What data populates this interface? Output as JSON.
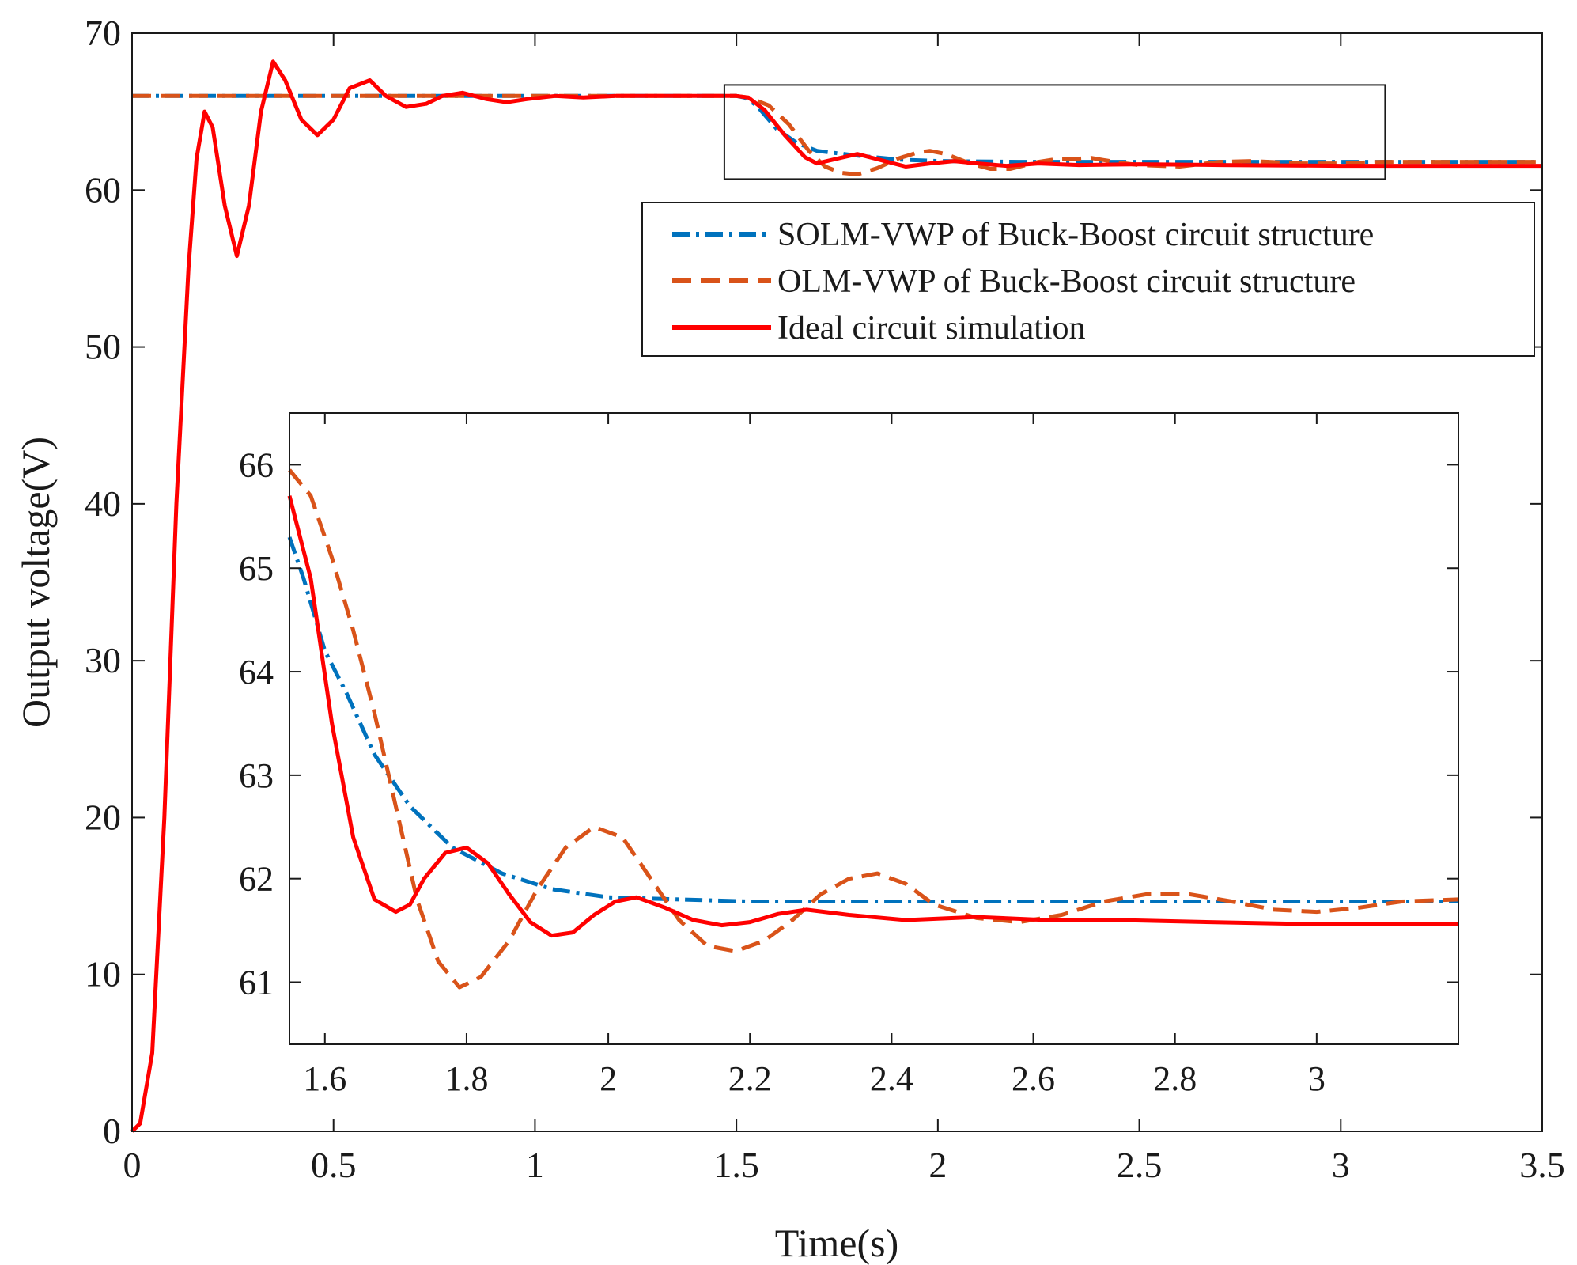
{
  "chart_data": [
    {
      "id": "main",
      "type": "line",
      "xlabel": "Time(s)",
      "ylabel": "Output voltage(V)",
      "xlim": [
        0,
        3.5
      ],
      "ylim": [
        0,
        70
      ],
      "xticks": [
        0,
        0.5,
        1,
        1.5,
        2,
        2.5,
        3,
        3.5
      ],
      "xtick_labels": [
        "0",
        "0.5",
        "1",
        "1.5",
        "2",
        "2.5",
        "3",
        "3.5"
      ],
      "yticks": [
        0,
        10,
        20,
        30,
        40,
        50,
        60,
        70
      ],
      "ytick_labels": [
        "0",
        "10",
        "20",
        "30",
        "40",
        "50",
        "60",
        "70"
      ],
      "grid": false,
      "legend_position": "upper-right",
      "zoom_box": {
        "x": [
          1.47,
          3.11
        ],
        "y": [
          60.7,
          66.7
        ]
      },
      "series": [
        {
          "name": "SOLM-VWP of Buck-Boost circuit structure",
          "color": "#0072BD",
          "style": "dashdot",
          "x": [
            0,
            1.5,
            1.52,
            1.55,
            1.6,
            1.65,
            1.7,
            1.8,
            1.9,
            2.0,
            2.2,
            2.5,
            3.0,
            3.5
          ],
          "y": [
            66,
            66,
            65.9,
            65.4,
            63.9,
            63.0,
            62.5,
            62.2,
            61.95,
            61.85,
            61.8,
            61.8,
            61.8,
            61.8
          ]
        },
        {
          "name": "OLM-VWP of Buck-Boost circuit structure",
          "color": "#D95319",
          "style": "dashed",
          "x": [
            0,
            1.5,
            1.53,
            1.58,
            1.63,
            1.68,
            1.72,
            1.76,
            1.8,
            1.85,
            1.9,
            1.95,
            1.98,
            2.02,
            2.08,
            2.13,
            2.18,
            2.25,
            2.3,
            2.35,
            2.38,
            2.45,
            2.5,
            2.6,
            2.7,
            2.78,
            2.9,
            3.0,
            3.1,
            3.5
          ],
          "y": [
            66,
            66,
            65.9,
            65.4,
            64.2,
            62.5,
            61.5,
            61.1,
            61.0,
            61.4,
            62.0,
            62.4,
            62.5,
            62.3,
            61.7,
            61.35,
            61.35,
            61.8,
            62.0,
            62.0,
            62.05,
            61.75,
            61.6,
            61.5,
            61.8,
            61.85,
            61.7,
            61.7,
            61.8,
            61.8
          ]
        },
        {
          "name": "Ideal circuit simulation",
          "color": "#FF0000",
          "style": "solid",
          "x": [
            0,
            0.02,
            0.05,
            0.08,
            0.11,
            0.14,
            0.16,
            0.18,
            0.2,
            0.23,
            0.26,
            0.29,
            0.32,
            0.35,
            0.38,
            0.42,
            0.46,
            0.5,
            0.54,
            0.59,
            0.63,
            0.68,
            0.73,
            0.77,
            0.82,
            0.88,
            0.93,
            0.98,
            1.05,
            1.12,
            1.2,
            1.3,
            1.4,
            1.5,
            1.53,
            1.57,
            1.62,
            1.67,
            1.7,
            1.75,
            1.8,
            1.86,
            1.92,
            1.98,
            2.04,
            2.1,
            2.17,
            2.25,
            2.35,
            2.5,
            2.7,
            3.0,
            3.5
          ],
          "y": [
            0,
            0.5,
            5,
            20,
            40,
            55,
            62,
            65,
            64,
            59,
            55.8,
            59,
            65,
            68.2,
            67,
            64.5,
            63.5,
            64.5,
            66.5,
            67,
            66,
            65.3,
            65.5,
            66,
            66.2,
            65.8,
            65.6,
            65.8,
            66,
            65.9,
            66,
            66,
            66,
            66,
            65.9,
            65.1,
            63.5,
            62.1,
            61.7,
            62.0,
            62.3,
            61.9,
            61.5,
            61.7,
            61.85,
            61.7,
            61.55,
            61.7,
            61.6,
            61.65,
            61.6,
            61.55,
            61.55
          ]
        }
      ]
    },
    {
      "id": "inset",
      "type": "line",
      "xlim": [
        1.55,
        3.2
      ],
      "ylim": [
        60.4,
        66.5
      ],
      "xticks": [
        1.6,
        1.8,
        2,
        2.2,
        2.4,
        2.6,
        2.8,
        3
      ],
      "xtick_labels": [
        "1.6",
        "1.8",
        "2",
        "2.2",
        "2.4",
        "2.6",
        "2.8",
        "3"
      ],
      "yticks": [
        61,
        62,
        63,
        64,
        65,
        66
      ],
      "ytick_labels": [
        "61",
        "62",
        "63",
        "64",
        "65",
        "66"
      ],
      "grid": false,
      "series": [
        {
          "ref": "SOLM-VWP of Buck-Boost circuit structure",
          "color": "#0072BD",
          "style": "dashdot",
          "x": [
            1.55,
            1.57,
            1.6,
            1.63,
            1.67,
            1.72,
            1.78,
            1.85,
            1.92,
            2.0,
            2.1,
            2.2,
            2.4,
            2.7,
            3.0,
            3.2
          ],
          "y": [
            65.3,
            64.9,
            64.2,
            63.8,
            63.2,
            62.7,
            62.3,
            62.05,
            61.9,
            61.82,
            61.8,
            61.78,
            61.78,
            61.78,
            61.78,
            61.78
          ]
        },
        {
          "ref": "OLM-VWP of Buck-Boost circuit structure",
          "color": "#D95319",
          "style": "dashed",
          "x": [
            1.55,
            1.58,
            1.61,
            1.64,
            1.67,
            1.7,
            1.73,
            1.76,
            1.79,
            1.82,
            1.86,
            1.9,
            1.94,
            1.98,
            2.02,
            2.06,
            2.1,
            2.14,
            2.18,
            2.22,
            2.26,
            2.3,
            2.34,
            2.38,
            2.42,
            2.46,
            2.52,
            2.58,
            2.64,
            2.7,
            2.76,
            2.82,
            2.88,
            2.94,
            3.0,
            3.06,
            3.12,
            3.2
          ],
          "y": [
            65.95,
            65.7,
            65.1,
            64.4,
            63.6,
            62.7,
            61.8,
            61.2,
            60.95,
            61.05,
            61.4,
            61.9,
            62.3,
            62.5,
            62.4,
            62.0,
            61.6,
            61.35,
            61.3,
            61.4,
            61.6,
            61.85,
            62.0,
            62.05,
            61.95,
            61.75,
            61.62,
            61.58,
            61.65,
            61.78,
            61.85,
            61.85,
            61.78,
            61.7,
            61.68,
            61.72,
            61.78,
            61.8
          ]
        },
        {
          "ref": "Ideal circuit simulation",
          "color": "#FF0000",
          "style": "solid",
          "x": [
            1.55,
            1.58,
            1.61,
            1.64,
            1.67,
            1.7,
            1.72,
            1.74,
            1.77,
            1.8,
            1.83,
            1.86,
            1.89,
            1.92,
            1.95,
            1.98,
            2.01,
            2.04,
            2.08,
            2.12,
            2.16,
            2.2,
            2.24,
            2.28,
            2.34,
            2.42,
            2.52,
            2.62,
            2.72,
            2.85,
            3.0,
            3.2
          ],
          "y": [
            65.7,
            64.9,
            63.5,
            62.4,
            61.8,
            61.68,
            61.75,
            62.0,
            62.25,
            62.3,
            62.15,
            61.85,
            61.58,
            61.45,
            61.48,
            61.65,
            61.78,
            61.82,
            61.72,
            61.6,
            61.55,
            61.58,
            61.66,
            61.7,
            61.65,
            61.6,
            61.63,
            61.6,
            61.6,
            61.58,
            61.56,
            61.56
          ]
        }
      ]
    }
  ]
}
